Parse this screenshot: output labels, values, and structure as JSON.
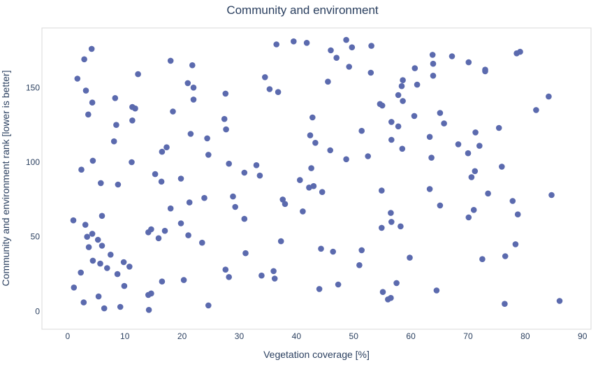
{
  "chart_data": {
    "type": "scatter",
    "title": "Community and environment",
    "xlabel": "Vegetation coverage [%]",
    "ylabel": "Community and environment rank [lower is better]",
    "xlim": [
      -4.5,
      91.5
    ],
    "ylim": [
      -12,
      190
    ],
    "xticks": [
      0,
      10,
      20,
      30,
      40,
      50,
      60,
      70,
      80,
      90
    ],
    "yticks": [
      0,
      50,
      100,
      150
    ],
    "grid": false,
    "marker_color": "#5b6aae",
    "points": [
      {
        "x": 4.2,
        "y": 176
      },
      {
        "x": 2.9,
        "y": 169
      },
      {
        "x": 18.0,
        "y": 168
      },
      {
        "x": 21.8,
        "y": 165
      },
      {
        "x": 12.3,
        "y": 159
      },
      {
        "x": 1.7,
        "y": 156
      },
      {
        "x": 21.0,
        "y": 153
      },
      {
        "x": 22.0,
        "y": 150
      },
      {
        "x": 3.2,
        "y": 148
      },
      {
        "x": 27.6,
        "y": 146
      },
      {
        "x": 8.3,
        "y": 143
      },
      {
        "x": 22.0,
        "y": 142
      },
      {
        "x": 4.3,
        "y": 140
      },
      {
        "x": 11.3,
        "y": 137
      },
      {
        "x": 11.8,
        "y": 136
      },
      {
        "x": 18.4,
        "y": 134
      },
      {
        "x": 3.6,
        "y": 132
      },
      {
        "x": 27.4,
        "y": 129
      },
      {
        "x": 11.3,
        "y": 128
      },
      {
        "x": 8.5,
        "y": 125
      },
      {
        "x": 27.7,
        "y": 122
      },
      {
        "x": 21.5,
        "y": 119
      },
      {
        "x": 24.4,
        "y": 116
      },
      {
        "x": 8.1,
        "y": 114
      },
      {
        "x": 17.3,
        "y": 110
      },
      {
        "x": 16.5,
        "y": 107
      },
      {
        "x": 24.6,
        "y": 105
      },
      {
        "x": 4.4,
        "y": 101
      },
      {
        "x": 11.2,
        "y": 100
      },
      {
        "x": 28.2,
        "y": 99
      },
      {
        "x": 2.4,
        "y": 95
      },
      {
        "x": 15.3,
        "y": 92
      },
      {
        "x": 19.8,
        "y": 89
      },
      {
        "x": 16.4,
        "y": 87
      },
      {
        "x": 5.8,
        "y": 86
      },
      {
        "x": 8.8,
        "y": 85
      },
      {
        "x": 28.9,
        "y": 77
      },
      {
        "x": 23.9,
        "y": 76
      },
      {
        "x": 21.3,
        "y": 73
      },
      {
        "x": 29.3,
        "y": 70
      },
      {
        "x": 18.0,
        "y": 69
      },
      {
        "x": 6.0,
        "y": 64
      },
      {
        "x": 1.0,
        "y": 61
      },
      {
        "x": 30.9,
        "y": 62
      },
      {
        "x": 19.8,
        "y": 59
      },
      {
        "x": 3.1,
        "y": 58
      },
      {
        "x": 14.6,
        "y": 55
      },
      {
        "x": 17.0,
        "y": 54
      },
      {
        "x": 14.1,
        "y": 53
      },
      {
        "x": 4.3,
        "y": 52
      },
      {
        "x": 21.1,
        "y": 51
      },
      {
        "x": 3.4,
        "y": 50
      },
      {
        "x": 15.9,
        "y": 49
      },
      {
        "x": 5.3,
        "y": 48
      },
      {
        "x": 23.5,
        "y": 46
      },
      {
        "x": 6.0,
        "y": 44
      },
      {
        "x": 3.7,
        "y": 43
      },
      {
        "x": 31.1,
        "y": 39
      },
      {
        "x": 7.5,
        "y": 38
      },
      {
        "x": 4.4,
        "y": 34
      },
      {
        "x": 9.8,
        "y": 33
      },
      {
        "x": 5.7,
        "y": 32
      },
      {
        "x": 10.8,
        "y": 30
      },
      {
        "x": 6.9,
        "y": 29
      },
      {
        "x": 27.6,
        "y": 28
      },
      {
        "x": 2.3,
        "y": 26
      },
      {
        "x": 8.7,
        "y": 25
      },
      {
        "x": 28.2,
        "y": 23
      },
      {
        "x": 20.3,
        "y": 21
      },
      {
        "x": 16.5,
        "y": 20
      },
      {
        "x": 9.9,
        "y": 17
      },
      {
        "x": 1.1,
        "y": 16
      },
      {
        "x": 14.6,
        "y": 12
      },
      {
        "x": 14.1,
        "y": 11
      },
      {
        "x": 5.4,
        "y": 10
      },
      {
        "x": 2.8,
        "y": 6
      },
      {
        "x": 24.6,
        "y": 4
      },
      {
        "x": 9.2,
        "y": 3
      },
      {
        "x": 6.4,
        "y": 2
      },
      {
        "x": 14.2,
        "y": 1
      },
      {
        "x": 39.5,
        "y": 181
      },
      {
        "x": 48.7,
        "y": 182
      },
      {
        "x": 41.8,
        "y": 180
      },
      {
        "x": 36.5,
        "y": 179
      },
      {
        "x": 53.1,
        "y": 178
      },
      {
        "x": 49.7,
        "y": 177
      },
      {
        "x": 46.0,
        "y": 175
      },
      {
        "x": 47.0,
        "y": 170
      },
      {
        "x": 49.2,
        "y": 164
      },
      {
        "x": 53.0,
        "y": 160
      },
      {
        "x": 34.5,
        "y": 157
      },
      {
        "x": 45.5,
        "y": 154
      },
      {
        "x": 35.3,
        "y": 149
      },
      {
        "x": 36.8,
        "y": 147
      },
      {
        "x": 54.6,
        "y": 139
      },
      {
        "x": 55.0,
        "y": 138
      },
      {
        "x": 42.8,
        "y": 130
      },
      {
        "x": 51.4,
        "y": 121
      },
      {
        "x": 42.4,
        "y": 118
      },
      {
        "x": 43.3,
        "y": 113
      },
      {
        "x": 45.9,
        "y": 108
      },
      {
        "x": 52.5,
        "y": 104
      },
      {
        "x": 48.7,
        "y": 102
      },
      {
        "x": 33.0,
        "y": 98
      },
      {
        "x": 42.6,
        "y": 96
      },
      {
        "x": 30.9,
        "y": 93
      },
      {
        "x": 33.6,
        "y": 91
      },
      {
        "x": 40.6,
        "y": 88
      },
      {
        "x": 43.0,
        "y": 84
      },
      {
        "x": 42.2,
        "y": 83
      },
      {
        "x": 44.5,
        "y": 80
      },
      {
        "x": 54.9,
        "y": 81
      },
      {
        "x": 37.6,
        "y": 75
      },
      {
        "x": 38.0,
        "y": 72
      },
      {
        "x": 41.1,
        "y": 67
      },
      {
        "x": 37.3,
        "y": 47
      },
      {
        "x": 54.9,
        "y": 56
      },
      {
        "x": 44.3,
        "y": 42
      },
      {
        "x": 46.4,
        "y": 40
      },
      {
        "x": 51.4,
        "y": 41
      },
      {
        "x": 36.0,
        "y": 27
      },
      {
        "x": 33.9,
        "y": 24
      },
      {
        "x": 36.2,
        "y": 22
      },
      {
        "x": 51.0,
        "y": 31
      },
      {
        "x": 47.3,
        "y": 18
      },
      {
        "x": 44.0,
        "y": 15
      },
      {
        "x": 55.1,
        "y": 13
      },
      {
        "x": 63.8,
        "y": 172
      },
      {
        "x": 67.2,
        "y": 171
      },
      {
        "x": 79.1,
        "y": 174
      },
      {
        "x": 78.5,
        "y": 173
      },
      {
        "x": 70.1,
        "y": 167
      },
      {
        "x": 63.9,
        "y": 166
      },
      {
        "x": 60.7,
        "y": 163
      },
      {
        "x": 73.0,
        "y": 162
      },
      {
        "x": 73.0,
        "y": 161
      },
      {
        "x": 63.9,
        "y": 158
      },
      {
        "x": 58.6,
        "y": 155
      },
      {
        "x": 61.1,
        "y": 152
      },
      {
        "x": 58.4,
        "y": 151
      },
      {
        "x": 57.8,
        "y": 145
      },
      {
        "x": 84.1,
        "y": 144
      },
      {
        "x": 58.6,
        "y": 141
      },
      {
        "x": 81.9,
        "y": 135
      },
      {
        "x": 65.1,
        "y": 133
      },
      {
        "x": 60.6,
        "y": 131
      },
      {
        "x": 56.6,
        "y": 127
      },
      {
        "x": 65.8,
        "y": 126
      },
      {
        "x": 57.8,
        "y": 124
      },
      {
        "x": 75.4,
        "y": 123
      },
      {
        "x": 71.3,
        "y": 120
      },
      {
        "x": 63.3,
        "y": 117
      },
      {
        "x": 56.6,
        "y": 115
      },
      {
        "x": 68.3,
        "y": 112
      },
      {
        "x": 72.0,
        "y": 111
      },
      {
        "x": 58.5,
        "y": 109
      },
      {
        "x": 70.0,
        "y": 106
      },
      {
        "x": 63.6,
        "y": 103
      },
      {
        "x": 75.9,
        "y": 97
      },
      {
        "x": 71.2,
        "y": 94
      },
      {
        "x": 70.6,
        "y": 90
      },
      {
        "x": 63.3,
        "y": 82
      },
      {
        "x": 73.5,
        "y": 79
      },
      {
        "x": 84.6,
        "y": 78
      },
      {
        "x": 77.8,
        "y": 74
      },
      {
        "x": 65.1,
        "y": 71
      },
      {
        "x": 71.0,
        "y": 68
      },
      {
        "x": 56.5,
        "y": 66
      },
      {
        "x": 78.7,
        "y": 65
      },
      {
        "x": 70.1,
        "y": 63
      },
      {
        "x": 56.6,
        "y": 60
      },
      {
        "x": 58.2,
        "y": 57
      },
      {
        "x": 78.3,
        "y": 45
      },
      {
        "x": 76.5,
        "y": 37
      },
      {
        "x": 59.8,
        "y": 36
      },
      {
        "x": 72.5,
        "y": 35
      },
      {
        "x": 57.5,
        "y": 19
      },
      {
        "x": 64.5,
        "y": 14
      },
      {
        "x": 56.5,
        "y": 9
      },
      {
        "x": 56.0,
        "y": 8
      },
      {
        "x": 86.0,
        "y": 7
      },
      {
        "x": 76.4,
        "y": 5
      }
    ]
  }
}
